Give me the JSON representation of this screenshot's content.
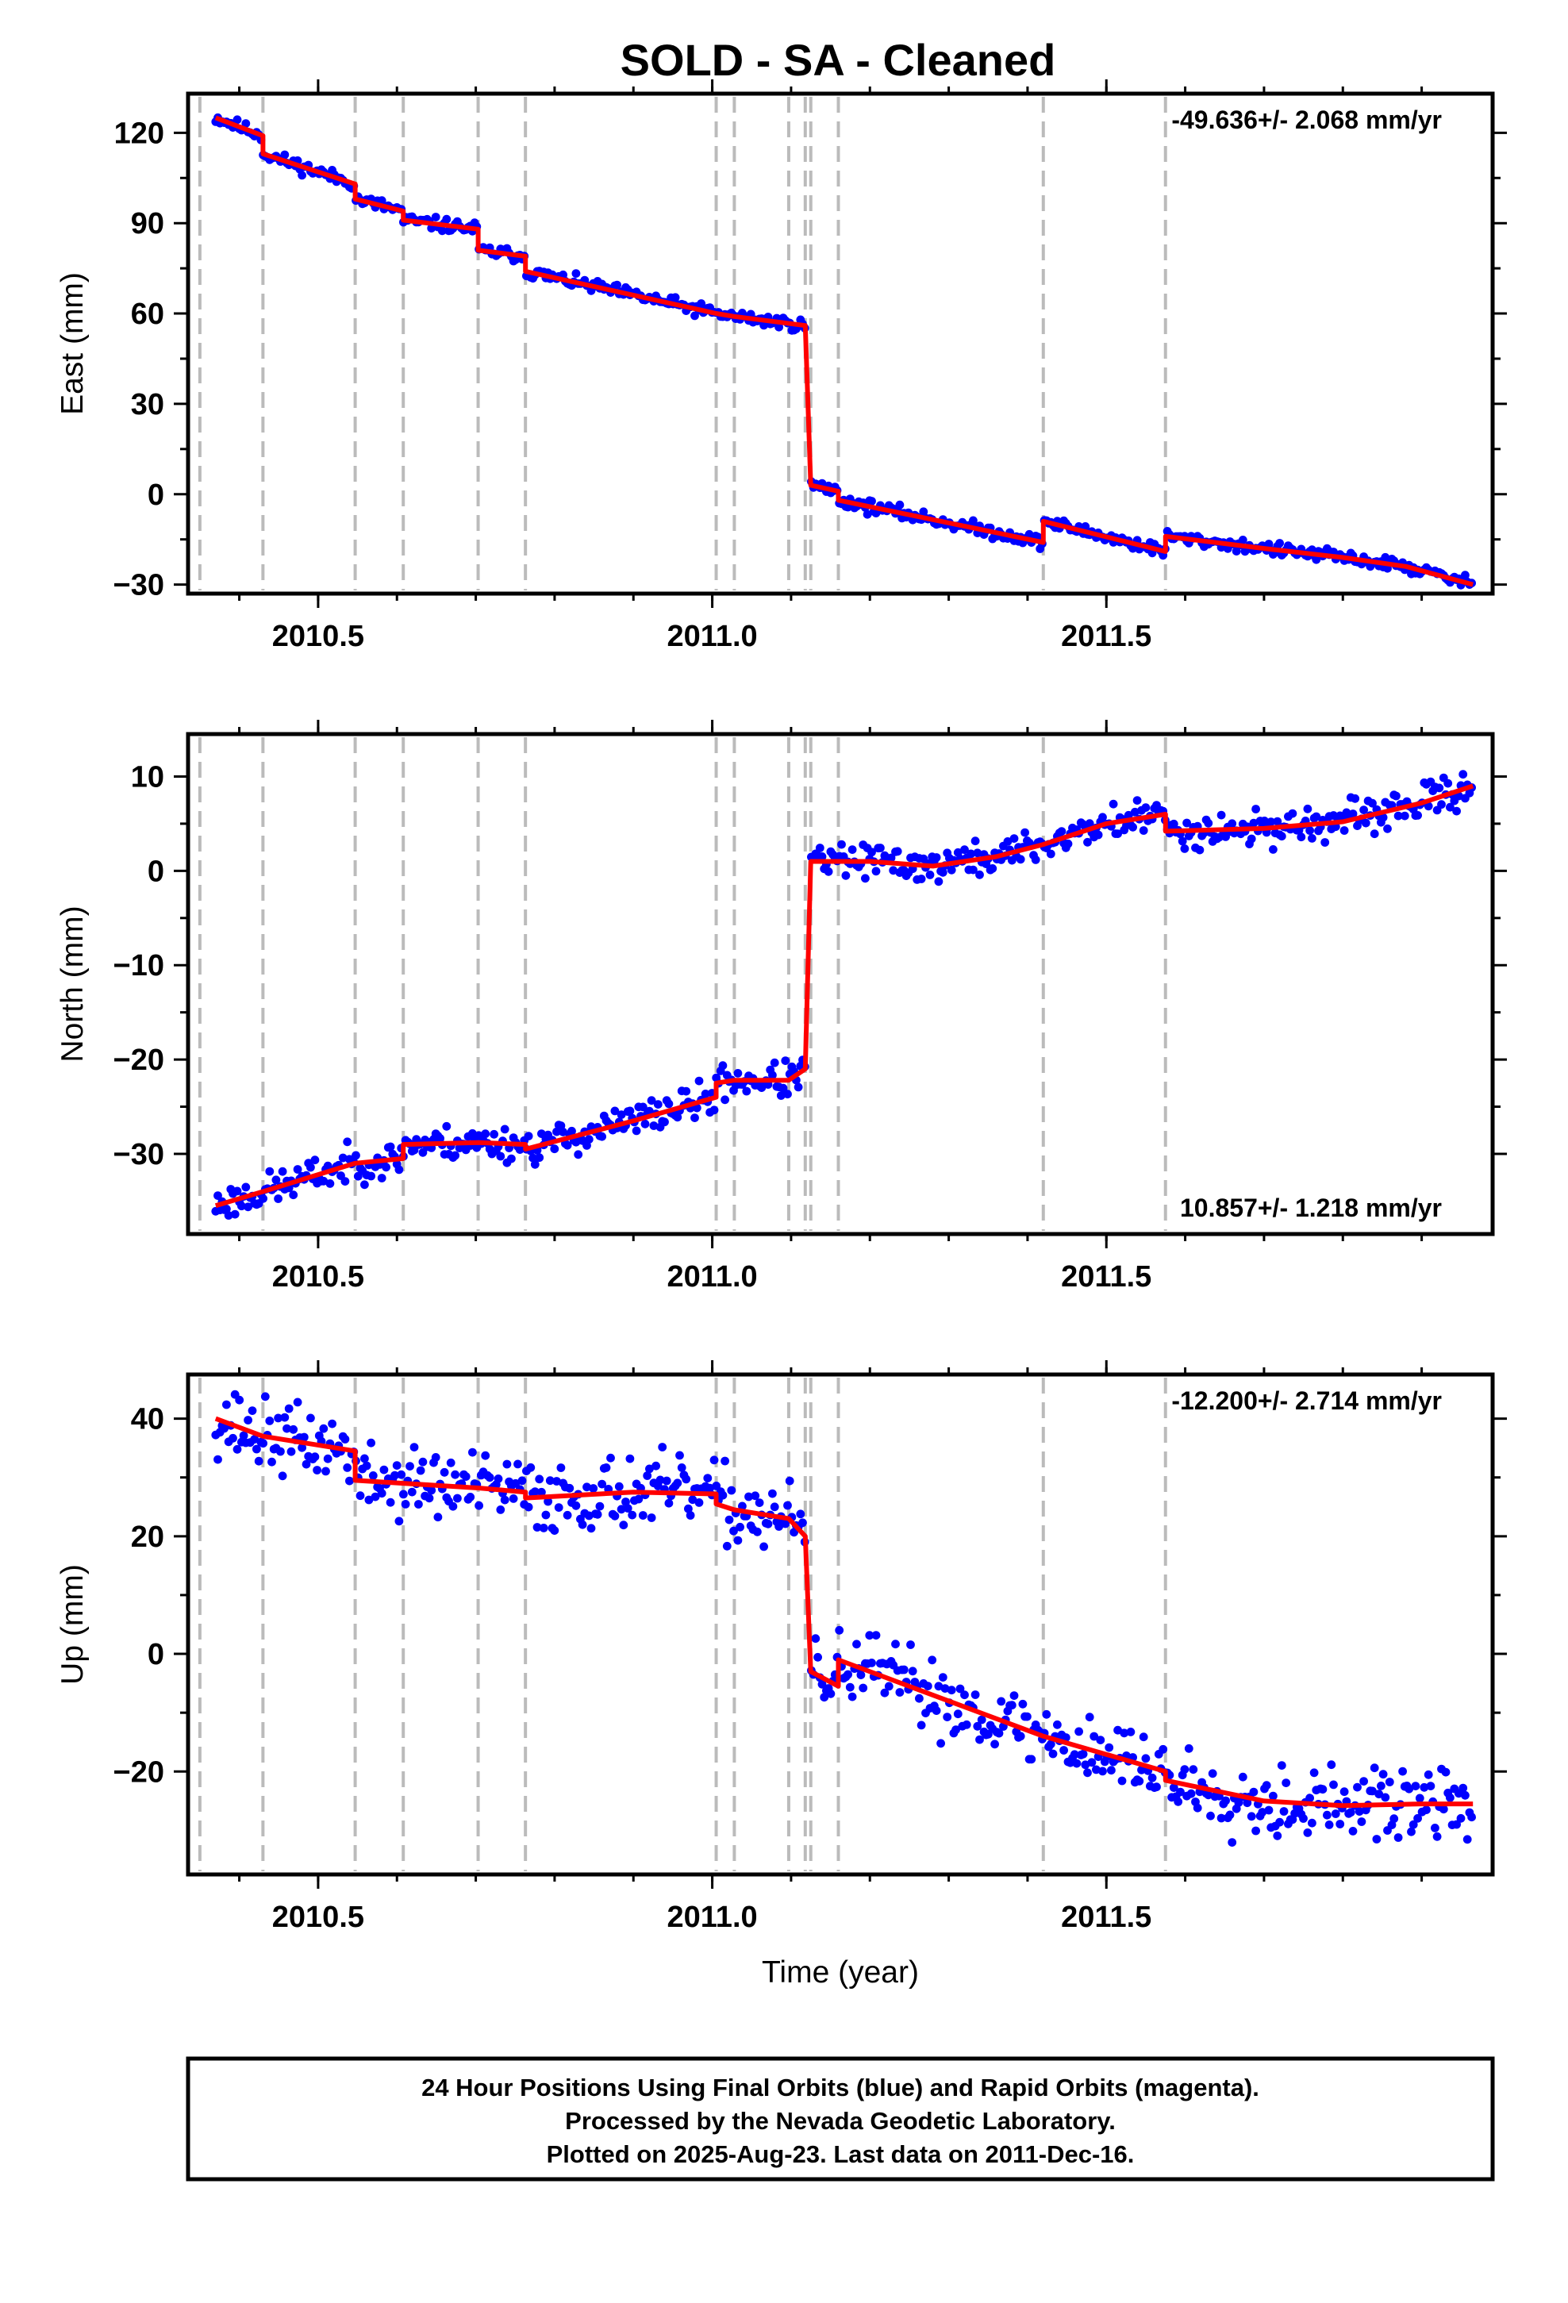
{
  "title": "SOLD  - SA - Cleaned",
  "footer": {
    "lines": [
      "24 Hour Positions Using Final Orbits (blue) and Rapid Orbits (magenta).",
      "Processed by the Nevada Geodetic Laboratory.",
      "Plotted on 2025-Aug-23. Last data on 2011-Dec-16."
    ]
  },
  "colors": {
    "points": "#0000ff",
    "fit": "#ff0000",
    "events": "#bbbbbb",
    "frame": "#000000"
  },
  "chart_data": [
    {
      "type": "scatter",
      "ylabel": "East (mm)",
      "xlabel": "",
      "rate_label": "-49.636+/- 2.068 mm/yr",
      "xlim": [
        2010.335,
        2011.99
      ],
      "ylim": [
        -33,
        133
      ],
      "xticks": [
        2010.5,
        2011.0,
        2011.5
      ],
      "xtick_labels": [
        "2010.5",
        "2011.0",
        "2011.5"
      ],
      "yticks": [
        -30,
        0,
        30,
        60,
        90,
        120
      ],
      "event_lines": [
        2010.35,
        2010.43,
        2010.547,
        2010.608,
        2010.703,
        2010.763,
        2011.005,
        2011.028,
        2011.097,
        2011.118,
        2011.125,
        2011.16,
        2011.42,
        2011.575
      ],
      "fit": [
        [
          2010.37,
          125
        ],
        [
          2010.43,
          119
        ],
        [
          2010.43,
          113
        ],
        [
          2010.547,
          103
        ],
        [
          2010.547,
          98
        ],
        [
          2010.608,
          94
        ],
        [
          2010.608,
          91
        ],
        [
          2010.703,
          88
        ],
        [
          2010.703,
          81
        ],
        [
          2010.763,
          79
        ],
        [
          2010.763,
          74
        ],
        [
          2011.005,
          60
        ],
        [
          2011.028,
          59
        ],
        [
          2011.118,
          56
        ],
        [
          2011.125,
          3
        ],
        [
          2011.16,
          1
        ],
        [
          2011.16,
          -2
        ],
        [
          2011.42,
          -16
        ],
        [
          2011.42,
          -9
        ],
        [
          2011.575,
          -19
        ],
        [
          2011.575,
          -14
        ],
        [
          2011.7,
          -18
        ],
        [
          2011.8,
          -21
        ],
        [
          2011.88,
          -24
        ],
        [
          2011.965,
          -30
        ]
      ],
      "trend": [
        [
          2010.37,
          126
        ],
        [
          2011.118,
          57
        ],
        [
          2011.125,
          3
        ],
        [
          2011.965,
          -27
        ]
      ],
      "noise": 1.5,
      "seed": 11
    },
    {
      "type": "scatter",
      "ylabel": "North (mm)",
      "xlabel": "",
      "rate_label": "10.857+/- 1.218 mm/yr",
      "xlim": [
        2010.335,
        2011.99
      ],
      "ylim": [
        -38.5,
        14.5
      ],
      "xticks": [
        2010.5,
        2011.0,
        2011.5
      ],
      "xtick_labels": [
        "2010.5",
        "2011.0",
        "2011.5"
      ],
      "yticks": [
        -30,
        -20,
        -10,
        0,
        10
      ],
      "event_lines": [
        2010.35,
        2010.43,
        2010.547,
        2010.608,
        2010.703,
        2010.763,
        2011.005,
        2011.028,
        2011.097,
        2011.118,
        2011.125,
        2011.16,
        2011.42,
        2011.575
      ],
      "fit": [
        [
          2010.37,
          -35.5
        ],
        [
          2010.43,
          -34
        ],
        [
          2010.547,
          -31
        ],
        [
          2010.608,
          -30.5
        ],
        [
          2010.608,
          -29
        ],
        [
          2010.703,
          -28.8
        ],
        [
          2010.763,
          -29
        ],
        [
          2010.763,
          -29.5
        ],
        [
          2010.9,
          -26.5
        ],
        [
          2011.005,
          -24
        ],
        [
          2011.005,
          -22.5
        ],
        [
          2011.028,
          -22.2
        ],
        [
          2011.097,
          -22.2
        ],
        [
          2011.118,
          -21
        ],
        [
          2011.125,
          1
        ],
        [
          2011.2,
          1
        ],
        [
          2011.28,
          0.5
        ],
        [
          2011.36,
          1.5
        ],
        [
          2011.42,
          2.8
        ],
        [
          2011.5,
          5
        ],
        [
          2011.575,
          6
        ],
        [
          2011.575,
          4.2
        ],
        [
          2011.7,
          4.5
        ],
        [
          2011.8,
          5.2
        ],
        [
          2011.9,
          7.2
        ],
        [
          2011.965,
          9
        ]
      ],
      "trend": [
        [
          2010.37,
          -35
        ],
        [
          2011.118,
          -21
        ],
        [
          2011.125,
          1.5
        ],
        [
          2011.965,
          8.5
        ]
      ],
      "noise": 1.3,
      "seed": 23
    },
    {
      "type": "scatter",
      "ylabel": "Up (mm)",
      "xlabel": "Time (year)",
      "rate_label": "-12.200+/- 2.714 mm/yr",
      "xlim": [
        2010.335,
        2011.99
      ],
      "ylim": [
        -37.5,
        47.5
      ],
      "xticks": [
        2010.5,
        2011.0,
        2011.5
      ],
      "xtick_labels": [
        "2010.5",
        "2011.0",
        "2011.5"
      ],
      "yticks": [
        -20,
        0,
        20,
        40
      ],
      "event_lines": [
        2010.35,
        2010.43,
        2010.547,
        2010.608,
        2010.703,
        2010.763,
        2011.005,
        2011.028,
        2011.097,
        2011.118,
        2011.125,
        2011.16,
        2011.42,
        2011.575
      ],
      "fit": [
        [
          2010.37,
          40
        ],
        [
          2010.43,
          37
        ],
        [
          2010.547,
          34.5
        ],
        [
          2010.547,
          29.5
        ],
        [
          2010.608,
          29
        ],
        [
          2010.703,
          28.2
        ],
        [
          2010.763,
          27.5
        ],
        [
          2010.763,
          26.5
        ],
        [
          2010.9,
          27.5
        ],
        [
          2011.005,
          27.2
        ],
        [
          2011.005,
          25.5
        ],
        [
          2011.028,
          24.5
        ],
        [
          2011.097,
          23
        ],
        [
          2011.118,
          20
        ],
        [
          2011.125,
          -3
        ],
        [
          2011.16,
          -5.5
        ],
        [
          2011.16,
          -1
        ],
        [
          2011.3,
          -8
        ],
        [
          2011.42,
          -14
        ],
        [
          2011.575,
          -20
        ],
        [
          2011.575,
          -21.5
        ],
        [
          2011.7,
          -25
        ],
        [
          2011.8,
          -25.8
        ],
        [
          2011.9,
          -25.5
        ],
        [
          2011.965,
          -25.5
        ]
      ],
      "trend": [
        [
          2010.37,
          38
        ],
        [
          2011.118,
          24
        ],
        [
          2011.125,
          -2
        ],
        [
          2011.965,
          -26
        ]
      ],
      "noise": 4.3,
      "seed": 37
    }
  ]
}
